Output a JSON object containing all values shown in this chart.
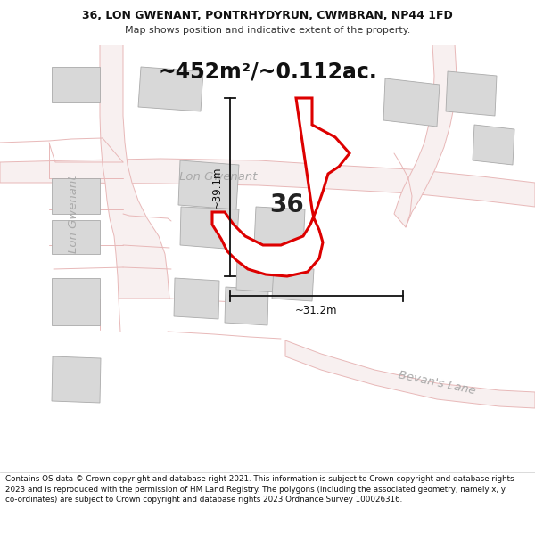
{
  "title_line1": "36, LON GWENANT, PONTRHYDYRUN, CWMBRAN, NP44 1FD",
  "title_line2": "Map shows position and indicative extent of the property.",
  "area_text": "~452m²/~0.112ac.",
  "background_color": "#ffffff",
  "map_bg_color": "#ffffff",
  "road_outline_color": "#e8b8b8",
  "plot_outline_color": "#dd0000",
  "plot_fill_color": "#ffffff",
  "building_fill_color": "#d8d8d8",
  "building_edge_color": "#aaaaaa",
  "dim_color": "#111111",
  "road_text_color": "#aaaaaa",
  "label_36_color": "#222222",
  "footer_text": "Contains OS data © Crown copyright and database right 2021. This information is subject to Crown copyright and database rights 2023 and is reproduced with the permission of HM Land Registry. The polygons (including the associated geometry, namely x, y co-ordinates) are subject to Crown copyright and database rights 2023 Ordnance Survey 100026316.",
  "dim_width": "~31.2m",
  "dim_height": "~39.1m",
  "road_label_lon_gwenant_top": "Lon Gwenant",
  "road_label_lon_gwenant_left": "Lon Gwenant",
  "road_label_bevans_lane": "Bevan's Lane",
  "figsize": [
    6.0,
    6.25
  ],
  "dpi": 100
}
